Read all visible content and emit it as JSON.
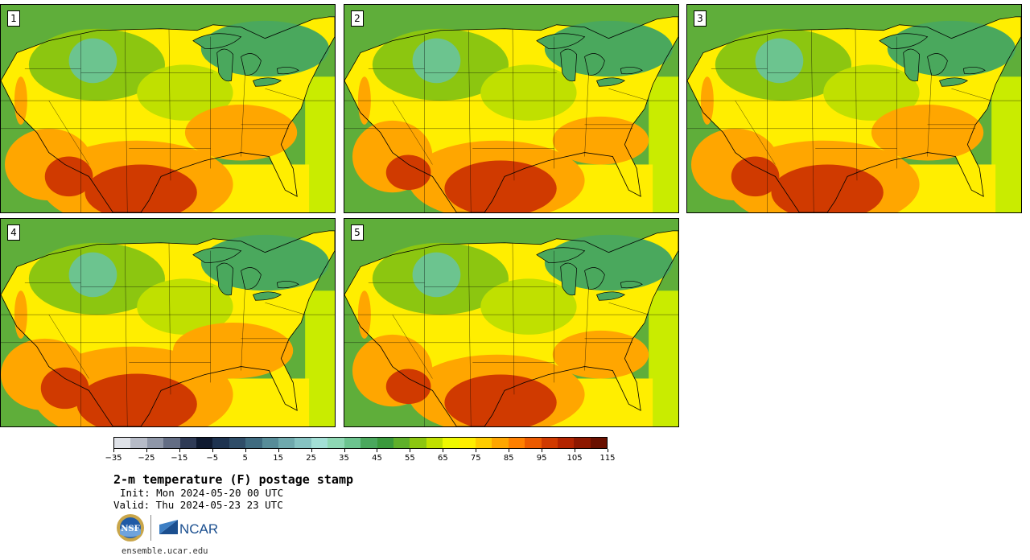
{
  "panels": [
    {
      "label": "1",
      "variant": "a"
    },
    {
      "label": "2",
      "variant": "b"
    },
    {
      "label": "3",
      "variant": "a"
    },
    {
      "label": "4",
      "variant": "c"
    },
    {
      "label": "5",
      "variant": "b"
    }
  ],
  "colorbar": {
    "colors": [
      "#dfe2e8",
      "#b6bbc7",
      "#8f97a8",
      "#636d84",
      "#2f3b56",
      "#0f1a30",
      "#1e3350",
      "#2f4d68",
      "#3f6b80",
      "#578c98",
      "#6fa9ad",
      "#86c3c2",
      "#a3e0d6",
      "#8ed8b4",
      "#6cc48f",
      "#4aa85d",
      "#3a9a3c",
      "#5fb02a",
      "#8cc610",
      "#c0e000",
      "#eef800",
      "#ffee00",
      "#ffcc00",
      "#ffa600",
      "#ff8000",
      "#ec5a00",
      "#d03a00",
      "#b32400",
      "#8e1800",
      "#6a1000"
    ],
    "tick_labels": [
      "−35",
      "−25",
      "−15",
      "−5",
      "5",
      "15",
      "25",
      "35",
      "45",
      "55",
      "65",
      "75",
      "85",
      "95",
      "105",
      "115"
    ]
  },
  "title": "2-m temperature (F) postage stamp",
  "init_text": "Init: Mon 2024-05-20 00 UTC",
  "valid_text": "Valid: Thu 2024-05-23 23 UTC",
  "footer": {
    "nsf_text": "NSF",
    "ncar_text": "NCAR",
    "site": "ensemble.ucar.edu"
  }
}
